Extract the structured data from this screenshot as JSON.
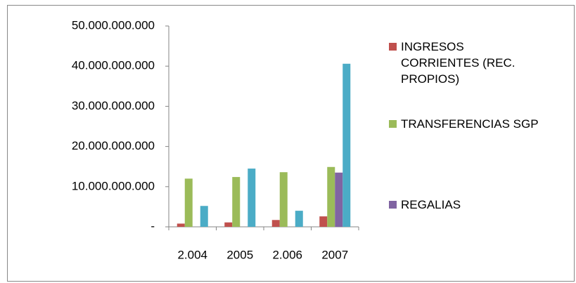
{
  "chart_data": {
    "type": "bar",
    "categories": [
      "2.004",
      "2005",
      "2.006",
      "2007"
    ],
    "series": [
      {
        "name": "INGRESOS CORRIENTES (REC. PROPIOS)",
        "color": "#c0504d",
        "values": [
          800000000,
          1100000000,
          1700000000,
          2600000000
        ]
      },
      {
        "name": "TRANSFERENCIAS SGP",
        "color": "#9bbb59",
        "values": [
          12000000000,
          12400000000,
          13600000000,
          14900000000
        ]
      },
      {
        "name": "REGALIAS",
        "color": "#8064a2",
        "values": [
          0,
          0,
          0,
          13500000000
        ]
      },
      {
        "color": "#4bacc6",
        "values": [
          5200000000,
          14500000000,
          4000000000,
          40600000000
        ]
      }
    ],
    "ylim": [
      0,
      50000000000
    ],
    "yticks": [
      {
        "value": 0,
        "label": "-"
      },
      {
        "value": 10000000000,
        "label": "10.000.000.000"
      },
      {
        "value": 20000000000,
        "label": "20.000.000.000"
      },
      {
        "value": 30000000000,
        "label": "30.000.000.000"
      },
      {
        "value": 40000000000,
        "label": "40.000.000.000"
      },
      {
        "value": 50000000000,
        "label": "50.000.000.000"
      }
    ],
    "grid": false,
    "legend": "right"
  }
}
